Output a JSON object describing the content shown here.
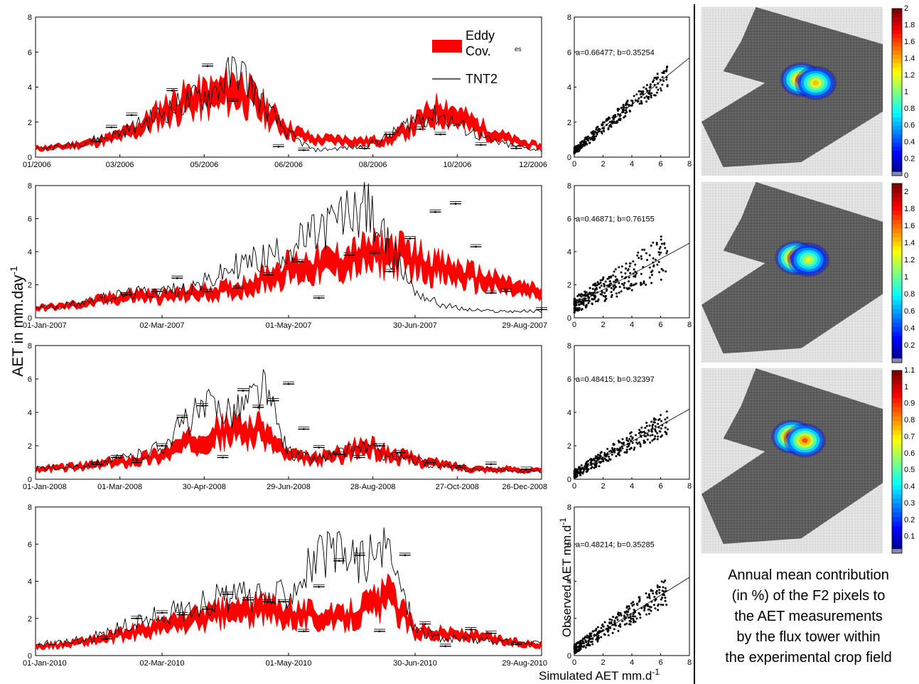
{
  "figure": {
    "y_axis_label": "AET in mm.day",
    "y_axis_label_sup": "-1",
    "scatter_ylabel": "Observed AET mm.d",
    "scatter_ylabel_sup": "-1",
    "scatter_xlabel": "Simulated AET mm.d",
    "scatter_xlabel_sup": "-1",
    "caption": [
      "Annual mean contribution",
      "(in %) of the F2 pixels to",
      "the  AET measurements",
      "by the flux tower within",
      "the experimental crop field"
    ],
    "colors": {
      "eddy": "#ff0000",
      "tnt2": "#000000",
      "map_bg": "#555555",
      "grid": "#b0b0b0"
    }
  },
  "legend": {
    "items": [
      {
        "label_lines": [
          "Eddy",
          "Cov."
        ],
        "color": "#ff0000",
        "kind": "band"
      },
      {
        "label_lines": [
          "TNT2"
        ],
        "color": "#000000",
        "kind": "line"
      }
    ],
    "fragment": "es"
  },
  "chart_data": [
    {
      "type": "area",
      "series": [
        {
          "name": "Eddy Cov."
        },
        {
          "name": "TNT2"
        }
      ],
      "ylim": [
        0,
        8
      ],
      "yticks": [
        0,
        2,
        4,
        6,
        8
      ],
      "xticks": [
        "01/2006",
        "03/2006",
        "05/2006",
        "06/2006",
        "08/2006",
        "10/2006",
        "12/2006"
      ],
      "envelope": [
        0.5,
        0.6,
        0.8,
        1.1,
        1.6,
        2.6,
        3.3,
        3.5,
        4.0,
        2.8,
        1.6,
        1.0,
        1.0,
        0.9,
        1.0,
        1.9,
        2.8,
        2.1,
        1.4,
        0.9,
        0.6
      ],
      "tnt2": [
        0.5,
        0.6,
        0.9,
        1.2,
        1.8,
        2.5,
        3.2,
        3.7,
        5.1,
        3.0,
        1.3,
        0.4,
        0.5,
        0.6,
        1.2,
        2.2,
        2.4,
        1.6,
        0.9,
        0.6,
        0.4
      ],
      "markers": [
        [
          12,
          0.9
        ],
        [
          15,
          1.7
        ],
        [
          19,
          2.4
        ],
        [
          27,
          3.8
        ],
        [
          34,
          5.2
        ],
        [
          39,
          3.2
        ],
        [
          48,
          0.6
        ],
        [
          53,
          0.4
        ],
        [
          65,
          0.5
        ],
        [
          70,
          1.3
        ],
        [
          76,
          1.6
        ],
        [
          80,
          1.3
        ],
        [
          88,
          0.7
        ],
        [
          95,
          0.5
        ]
      ]
    },
    {
      "type": "scatter",
      "xlim": [
        0,
        8
      ],
      "ylim": [
        0,
        8
      ],
      "ticks": [
        0,
        2,
        4,
        6,
        8
      ],
      "annotation": "a=0.66477; b=0.35254",
      "slope": 0.66477,
      "intercept": 0.35254,
      "spread": 0.4
    },
    {
      "type": "area",
      "series": [
        {
          "name": "Eddy Cov."
        },
        {
          "name": "TNT2"
        }
      ],
      "ylim": [
        0,
        8
      ],
      "yticks": [
        0,
        2,
        4,
        6,
        8
      ],
      "xticks": [
        "01-Jan-2007",
        "02-Mar-2007",
        "01-May-2007",
        "30-Jun-2007",
        "29-Aug-2007"
      ],
      "envelope": [
        0.6,
        0.7,
        0.9,
        1.2,
        1.4,
        1.3,
        1.5,
        1.6,
        1.8,
        2.4,
        3.0,
        3.2,
        3.4,
        3.8,
        4.0,
        3.6,
        3.0,
        2.6,
        2.2,
        1.8,
        1.5
      ],
      "tnt2": [
        0.6,
        0.7,
        1.0,
        1.3,
        1.5,
        1.6,
        1.8,
        2.3,
        3.2,
        3.6,
        4.2,
        5.0,
        6.0,
        6.8,
        4.2,
        1.6,
        0.8,
        0.5,
        0.4,
        0.4,
        0.4
      ],
      "markers": [
        [
          18,
          1.4
        ],
        [
          24,
          1.6
        ],
        [
          28,
          2.4
        ],
        [
          34,
          1.6
        ],
        [
          40,
          1.8
        ],
        [
          46,
          2.6
        ],
        [
          52,
          3.4
        ],
        [
          56,
          1.2
        ],
        [
          62,
          3.8
        ],
        [
          67,
          3.9
        ],
        [
          70,
          2.8
        ],
        [
          74,
          4.8
        ],
        [
          79,
          6.4
        ],
        [
          83,
          6.9
        ],
        [
          87,
          4.3
        ],
        [
          90,
          1.5
        ],
        [
          93,
          1.6
        ],
        [
          100,
          0.5
        ]
      ]
    },
    {
      "type": "scatter",
      "xlim": [
        0,
        8
      ],
      "ylim": [
        0,
        8
      ],
      "ticks": [
        0,
        2,
        4,
        6,
        8
      ],
      "annotation": "a=0.46871; b=0.76155",
      "slope": 0.46871,
      "intercept": 0.76155,
      "spread": 0.9
    },
    {
      "type": "area",
      "series": [
        {
          "name": "Eddy Cov."
        },
        {
          "name": "TNT2"
        }
      ],
      "ylim": [
        0,
        8
      ],
      "yticks": [
        0,
        2,
        4,
        6,
        8
      ],
      "xticks": [
        "01-Jan-2008",
        "01-Mar-2008",
        "30-Apr-2008",
        "29-Jun-2008",
        "28-Aug-2008",
        "27-Oct-2008",
        "26-Dec-2008"
      ],
      "envelope": [
        0.6,
        0.7,
        0.8,
        1.0,
        1.2,
        1.5,
        2.2,
        2.8,
        3.0,
        2.9,
        1.4,
        1.2,
        1.5,
        2.0,
        1.5,
        1.2,
        0.9,
        0.7,
        0.6,
        0.6,
        0.5
      ],
      "tnt2": [
        0.6,
        0.7,
        0.9,
        1.1,
        1.4,
        2.0,
        3.6,
        4.4,
        4.2,
        5.5,
        1.6,
        1.2,
        1.5,
        2.0,
        1.4,
        1.1,
        0.8,
        0.6,
        0.6,
        0.5,
        0.5
      ],
      "markers": [
        [
          12,
          0.9
        ],
        [
          16,
          1.3
        ],
        [
          20,
          1.0
        ],
        [
          25,
          2.0
        ],
        [
          29,
          3.7
        ],
        [
          33,
          4.4
        ],
        [
          37,
          1.3
        ],
        [
          41,
          5.3
        ],
        [
          44,
          4.3
        ],
        [
          47,
          4.7
        ],
        [
          50,
          5.7
        ],
        [
          53,
          3.0
        ],
        [
          56,
          1.9
        ],
        [
          60,
          1.5
        ],
        [
          64,
          1.3
        ],
        [
          68,
          2.0
        ],
        [
          72,
          1.6
        ],
        [
          78,
          1.0
        ],
        [
          84,
          0.7
        ],
        [
          90,
          0.9
        ],
        [
          97,
          0.6
        ]
      ]
    },
    {
      "type": "scatter",
      "xlim": [
        0,
        8
      ],
      "ylim": [
        0,
        8
      ],
      "ticks": [
        0,
        2,
        4,
        6,
        8
      ],
      "annotation": "a=0.48415; b=0.32397",
      "slope": 0.48415,
      "intercept": 0.32397,
      "spread": 0.5
    },
    {
      "type": "area",
      "series": [
        {
          "name": "Eddy Cov."
        },
        {
          "name": "TNT2"
        }
      ],
      "ylim": [
        0,
        8
      ],
      "yticks": [
        0,
        2,
        4,
        6,
        8
      ],
      "xticks": [
        "01-Jan-2010",
        "02-Mar-2010",
        "01-May-2010",
        "30-Jun-2010",
        "29-Aug-2010"
      ],
      "envelope": [
        0.5,
        0.6,
        0.8,
        1.0,
        1.3,
        1.6,
        1.9,
        2.2,
        2.4,
        2.5,
        2.4,
        2.2,
        2.0,
        2.6,
        3.2,
        1.4,
        1.2,
        1.1,
        0.9,
        0.7,
        0.6
      ],
      "tnt2": [
        0.6,
        0.7,
        0.9,
        1.3,
        1.8,
        2.2,
        2.5,
        3.0,
        3.2,
        3.0,
        3.5,
        5.2,
        5.4,
        5.2,
        5.5,
        1.5,
        0.9,
        0.9,
        0.8,
        0.7,
        0.6
      ],
      "markers": [
        [
          14,
          0.9
        ],
        [
          20,
          2.0
        ],
        [
          25,
          2.3
        ],
        [
          29,
          2.2
        ],
        [
          34,
          2.5
        ],
        [
          38,
          3.3
        ],
        [
          42,
          3.0
        ],
        [
          46,
          2.9
        ],
        [
          49,
          2.9
        ],
        [
          53,
          1.3
        ],
        [
          56,
          3.7
        ],
        [
          60,
          5.1
        ],
        [
          64,
          5.4
        ],
        [
          68,
          1.3
        ],
        [
          73,
          5.4
        ],
        [
          77,
          1.7
        ],
        [
          81,
          0.5
        ],
        [
          86,
          1.4
        ],
        [
          90,
          1.2
        ],
        [
          95,
          0.6
        ]
      ]
    },
    {
      "type": "scatter",
      "xlim": [
        0,
        8
      ],
      "ylim": [
        0,
        8
      ],
      "ticks": [
        0,
        2,
        4,
        6,
        8
      ],
      "annotation": "a=0.48214; b=0.35285",
      "slope": 0.48214,
      "intercept": 0.35285,
      "spread": 0.5
    },
    {
      "type": "heatmap",
      "colorbar_ticks": [
        "0",
        "0.2",
        "0.4",
        "0.6",
        "0.8",
        "1",
        "1.2",
        "1.4",
        "1.6",
        "1.8",
        "2"
      ],
      "max": 2,
      "hotspots": [
        {
          "x": 0.55,
          "y": 0.43,
          "v": 1.8
        },
        {
          "x": 0.63,
          "y": 0.45,
          "v": 1.4
        }
      ]
    },
    {
      "type": "heatmap",
      "colorbar_ticks": [
        "0.2",
        "0.4",
        "0.6",
        "0.8",
        "1",
        "1.2",
        "1.4",
        "1.6",
        "1.8",
        "2"
      ],
      "max": 2.1,
      "hotspots": [
        {
          "x": 0.52,
          "y": 0.42,
          "v": 2.1
        },
        {
          "x": 0.59,
          "y": 0.43,
          "v": 1.3
        }
      ]
    },
    {
      "type": "heatmap",
      "colorbar_ticks": [
        "0.1",
        "0.2",
        "0.3",
        "0.4",
        "0.5",
        "0.6",
        "0.7",
        "0.8",
        "0.9",
        "1",
        "1.1"
      ],
      "max": 1.1,
      "hotspots": [
        {
          "x": 0.5,
          "y": 0.37,
          "v": 1.1
        },
        {
          "x": 0.57,
          "y": 0.39,
          "v": 0.9
        }
      ]
    }
  ]
}
